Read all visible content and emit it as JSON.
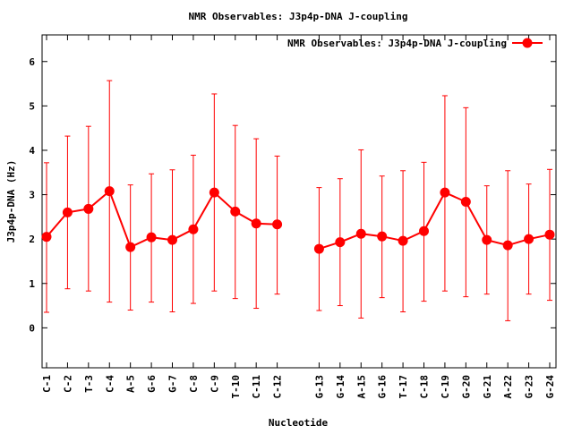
{
  "chart_data": {
    "type": "line",
    "title": "NMR Observables: J3p4p-DNA J-coupling",
    "xlabel": "Nucleotide",
    "ylabel": "J3p4p-DNA (Hz)",
    "ylim": [
      -0.9,
      6.6
    ],
    "yticks": [
      0,
      1,
      2,
      3,
      4,
      5,
      6
    ],
    "grid": false,
    "legend_position": "top-right",
    "series_color": "#ff0000",
    "series": [
      {
        "name": "NMR Observables: J3p4p-DNA J-coupling",
        "values": [
          2.05,
          2.6,
          2.68,
          3.08,
          1.82,
          2.04,
          1.98,
          2.22,
          3.05,
          2.62,
          2.35,
          2.33,
          1.78,
          1.93,
          2.12,
          2.06,
          1.96,
          2.18,
          3.05,
          2.84,
          1.98,
          1.86,
          2.0,
          2.1
        ],
        "err_high": [
          3.72,
          4.32,
          4.54,
          5.57,
          3.22,
          3.47,
          3.56,
          3.89,
          5.27,
          4.56,
          4.26,
          3.87,
          3.16,
          3.36,
          4.01,
          3.42,
          3.54,
          3.73,
          5.23,
          4.96,
          3.2,
          3.54,
          3.24,
          3.57
        ],
        "err_low": [
          0.35,
          0.88,
          0.83,
          0.58,
          0.4,
          0.58,
          0.36,
          0.55,
          0.83,
          0.66,
          0.44,
          0.76,
          0.39,
          0.5,
          0.22,
          0.68,
          0.36,
          0.6,
          0.83,
          0.7,
          0.76,
          0.16,
          0.76,
          0.62
        ]
      }
    ],
    "categories": [
      "C-1",
      "C-2",
      "T-3",
      "C-4",
      "A-5",
      "G-6",
      "G-7",
      "C-8",
      "C-9",
      "T-10",
      "C-11",
      "C-12",
      "G-13",
      "G-14",
      "A-15",
      "G-16",
      "T-17",
      "C-18",
      "C-19",
      "G-20",
      "G-21",
      "A-22",
      "G-23",
      "G-24"
    ]
  }
}
